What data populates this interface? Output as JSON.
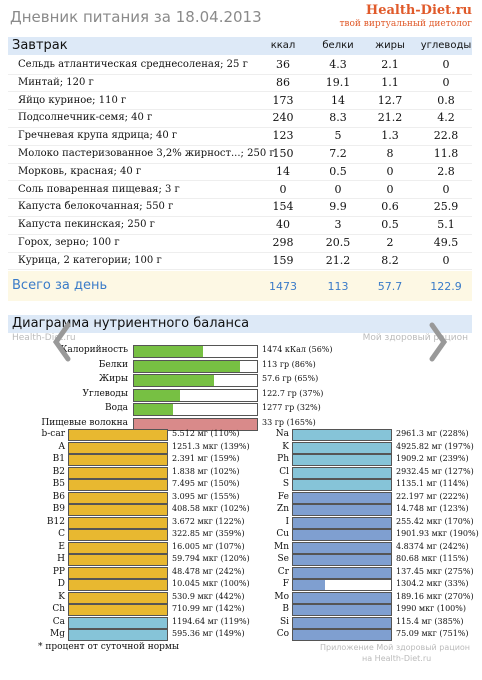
{
  "header": {
    "title": "Дневник питания за 18.04.2013",
    "logo": "Health-Diet.ru",
    "slogan": "твой виртуальный диетолог"
  },
  "table": {
    "header": [
      "Завтрак",
      "ккал",
      "белки",
      "жиры",
      "углеводы"
    ],
    "rows": [
      [
        "Сельдь атлантическая среднесоленая; 25 г",
        36,
        4.3,
        2.1,
        0
      ],
      [
        "Минтай; 120 г",
        86,
        19.1,
        1.1,
        0
      ],
      [
        "Яйцо куриное; 110 г",
        173,
        14,
        12.7,
        0.8
      ],
      [
        "Подсолнечник-семя; 40 г",
        240,
        8.3,
        21.2,
        4.2
      ],
      [
        "Гречневая крупа ядрица; 40 г",
        123,
        5,
        1.3,
        22.8
      ],
      [
        "Молоко пастеризованное 3,2% жирност...; 250 г",
        150,
        7.2,
        8,
        11.8
      ],
      [
        "Морковь, красная; 40 г",
        14,
        0.5,
        0,
        2.8
      ],
      [
        "Соль поваренная пищевая; 3 г",
        0,
        0,
        0,
        0
      ],
      [
        "Капуста белокочанная; 550 г",
        154,
        9.9,
        0.6,
        25.9
      ],
      [
        "Капуста пекинская; 250 г",
        40,
        3,
        0.5,
        5.1
      ],
      [
        "Горох, зерно; 100 г",
        298,
        20.5,
        2,
        49.5
      ],
      [
        "Курица, 2 категории; 100 г",
        159,
        21.2,
        8.2,
        0
      ]
    ],
    "total": [
      "Всего за день",
      1473,
      113,
      57.7,
      122.9
    ]
  },
  "balance": {
    "title": "Диаграмма нутриентного баланса",
    "watermark_left": "Health-Diet.ru",
    "watermark_right": "Мой здоровый рацион",
    "main": [
      {
        "name": "Калорийность",
        "label": "1474 кКал (56%)",
        "percent": 56,
        "color": "#77c043"
      },
      {
        "name": "Белки",
        "label": "113 гр (86%)",
        "percent": 86,
        "color": "#77c043"
      },
      {
        "name": "Жиры",
        "label": "57.6 гр (65%)",
        "percent": 65,
        "color": "#77c043"
      },
      {
        "name": "Углеводы",
        "label": "122.7 гр (37%)",
        "percent": 37,
        "color": "#77c043"
      },
      {
        "name": "Вода",
        "label": "1277 гр (32%)",
        "percent": 32,
        "color": "#77c043"
      },
      {
        "name": "Пищевые волокна",
        "label": "33 гр (165%)",
        "percent": 165,
        "color": "#d98a8a"
      }
    ],
    "left": [
      {
        "name": "b-car",
        "label": "5.512 мг (110%)",
        "percent": 110,
        "color": "#e8b830"
      },
      {
        "name": "A",
        "label": "1251.3 мкг (139%)",
        "percent": 139,
        "color": "#e8b830"
      },
      {
        "name": "B1",
        "label": "2.391 мг (159%)",
        "percent": 159,
        "color": "#e8b830"
      },
      {
        "name": "B2",
        "label": "1.838 мг (102%)",
        "percent": 102,
        "color": "#e8b830"
      },
      {
        "name": "B5",
        "label": "7.495 мг (150%)",
        "percent": 150,
        "color": "#e8b830"
      },
      {
        "name": "B6",
        "label": "3.095 мг (155%)",
        "percent": 155,
        "color": "#e8b830"
      },
      {
        "name": "B9",
        "label": "408.58 мкг (102%)",
        "percent": 102,
        "color": "#e8b830"
      },
      {
        "name": "B12",
        "label": "3.672 мкг (122%)",
        "percent": 122,
        "color": "#e8b830"
      },
      {
        "name": "C",
        "label": "322.85 мг (359%)",
        "percent": 359,
        "color": "#e8b830"
      },
      {
        "name": "E",
        "label": "16.005 мг (107%)",
        "percent": 107,
        "color": "#e8b830"
      },
      {
        "name": "H",
        "label": "59.794 мкг (120%)",
        "percent": 120,
        "color": "#e8b830"
      },
      {
        "name": "PP",
        "label": "48.478 мг (242%)",
        "percent": 242,
        "color": "#e8b830"
      },
      {
        "name": "D",
        "label": "10.045 мкг (100%)",
        "percent": 100,
        "color": "#e8b830"
      },
      {
        "name": "K",
        "label": "530.9 мкг (442%)",
        "percent": 442,
        "color": "#e8b830"
      },
      {
        "name": "Ch",
        "label": "710.99 мг (142%)",
        "percent": 142,
        "color": "#e8b830"
      },
      {
        "name": "Ca",
        "label": "1194.64 мг (119%)",
        "percent": 119,
        "color": "#86c4d8"
      },
      {
        "name": "Mg",
        "label": "595.36 мг (149%)",
        "percent": 149,
        "color": "#86c4d8"
      }
    ],
    "right": [
      {
        "name": "Na",
        "label": "2961.3 мг (228%)",
        "percent": 228,
        "color": "#86c4d8"
      },
      {
        "name": "K",
        "label": "4925.82 мг (197%)",
        "percent": 197,
        "color": "#86c4d8"
      },
      {
        "name": "Ph",
        "label": "1909.2 мг (239%)",
        "percent": 239,
        "color": "#86c4d8"
      },
      {
        "name": "Cl",
        "label": "2932.45 мг (127%)",
        "percent": 127,
        "color": "#86c4d8"
      },
      {
        "name": "S",
        "label": "1135.1 мг (114%)",
        "percent": 114,
        "color": "#86c4d8"
      },
      {
        "name": "Fe",
        "label": "22.197 мг (222%)",
        "percent": 222,
        "color": "#7f9fd0"
      },
      {
        "name": "Zn",
        "label": "14.748 мг (123%)",
        "percent": 123,
        "color": "#7f9fd0"
      },
      {
        "name": "I",
        "label": "255.42 мкг (170%)",
        "percent": 170,
        "color": "#7f9fd0"
      },
      {
        "name": "Cu",
        "label": "1901.93 мкг (190%)",
        "percent": 190,
        "color": "#7f9fd0"
      },
      {
        "name": "Mn",
        "label": "4.8374 мг (242%)",
        "percent": 242,
        "color": "#7f9fd0"
      },
      {
        "name": "Se",
        "label": "80.68 мкг (115%)",
        "percent": 115,
        "color": "#7f9fd0"
      },
      {
        "name": "Cr",
        "label": "137.45 мкг (275%)",
        "percent": 275,
        "color": "#7f9fd0"
      },
      {
        "name": "F",
        "label": "1304.2 мкг (33%)",
        "percent": 33,
        "color": "#7f9fd0"
      },
      {
        "name": "Mo",
        "label": "189.16 мкг (270%)",
        "percent": 270,
        "color": "#7f9fd0"
      },
      {
        "name": "B",
        "label": "1990 мкг (100%)",
        "percent": 100,
        "color": "#7f9fd0"
      },
      {
        "name": "Si",
        "label": "115.4 мг (385%)",
        "percent": 385,
        "color": "#7f9fd0"
      },
      {
        "name": "Co",
        "label": "75.09 мкг (751%)",
        "percent": 751,
        "color": "#7f9fd0"
      }
    ],
    "footnote": "* процент от суточной нормы",
    "app_line1": "Приложение Мой здоровый рацион",
    "app_line2": "на Health-Diet.ru"
  }
}
